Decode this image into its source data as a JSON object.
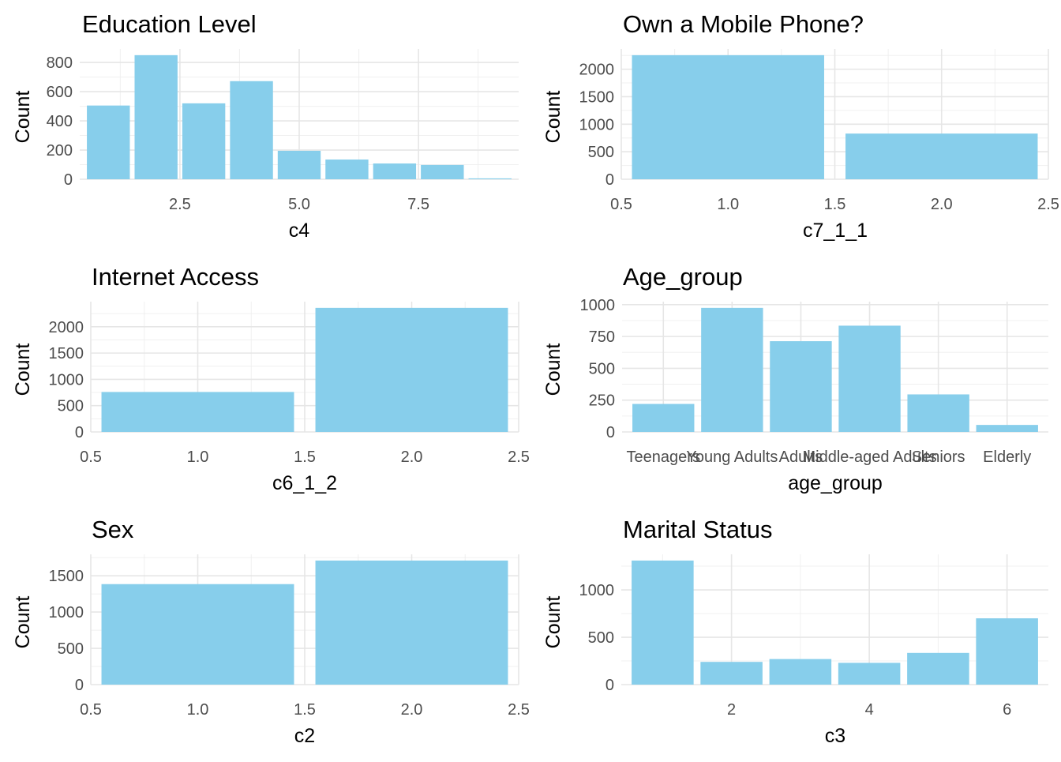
{
  "chart_data": [
    {
      "type": "bar",
      "title": "Education Level",
      "xlabel": "c4",
      "ylabel": "Count",
      "x_scale": "continuous",
      "bar_width": 0.9,
      "x": [
        1,
        2,
        3,
        4,
        5,
        6,
        7,
        8,
        9
      ],
      "values": [
        505,
        850,
        520,
        672,
        195,
        135,
        108,
        98,
        6
      ],
      "xlim": [
        0.4,
        9.6
      ],
      "ylim": [
        0,
        850
      ],
      "xticks": [
        2.5,
        5.0,
        7.5
      ],
      "xtick_labels": [
        "2.5",
        "5.0",
        "7.5"
      ],
      "yticks": [
        0,
        200,
        400,
        600,
        800
      ],
      "color": "#87CEEB",
      "grid": true
    },
    {
      "type": "bar",
      "title": "Own a Mobile Phone?",
      "xlabel": "c7_1_1",
      "ylabel": "Count",
      "x_scale": "continuous",
      "bar_width": 0.9,
      "x": [
        1,
        2
      ],
      "values": [
        2255,
        830
      ],
      "xlim": [
        0.5,
        2.5
      ],
      "ylim": [
        0,
        2255
      ],
      "xticks": [
        0.5,
        1.0,
        1.5,
        2.0,
        2.5
      ],
      "xtick_labels": [
        "0.5",
        "1.0",
        "1.5",
        "2.0",
        "2.5"
      ],
      "yticks": [
        0,
        500,
        1000,
        1500,
        2000
      ],
      "color": "#87CEEB",
      "grid": true
    },
    {
      "type": "bar",
      "title": "Internet Access",
      "xlabel": "c6_1_2",
      "ylabel": "Count",
      "x_scale": "continuous",
      "bar_width": 0.9,
      "x": [
        1,
        2
      ],
      "values": [
        760,
        2360
      ],
      "xlim": [
        0.5,
        2.5
      ],
      "ylim": [
        0,
        2360
      ],
      "xticks": [
        0.5,
        1.0,
        1.5,
        2.0,
        2.5
      ],
      "xtick_labels": [
        "0.5",
        "1.0",
        "1.5",
        "2.0",
        "2.5"
      ],
      "yticks": [
        0,
        500,
        1000,
        1500,
        2000
      ],
      "color": "#87CEEB",
      "grid": true
    },
    {
      "type": "bar",
      "title": "Age_group",
      "xlabel": "age_group",
      "ylabel": "Count",
      "x_scale": "discrete",
      "bar_width": 0.9,
      "categories": [
        "Teenagers",
        "Young Adults",
        "Adults",
        "Middle-aged Adults",
        "Seniors",
        "Elderly"
      ],
      "x": [
        1,
        2,
        3,
        4,
        5,
        6
      ],
      "values": [
        220,
        975,
        713,
        835,
        295,
        55
      ],
      "xlim": [
        0.4,
        6.6
      ],
      "ylim": [
        0,
        975
      ],
      "xticks": [
        1,
        2,
        3,
        4,
        5,
        6
      ],
      "xtick_labels": [
        "Teenagers",
        "Young Adults",
        "Adults",
        "Middle-aged Adults",
        "Seniors",
        "Elderly"
      ],
      "yticks": [
        0,
        250,
        500,
        750,
        1000
      ],
      "color": "#87CEEB",
      "grid": true
    },
    {
      "type": "bar",
      "title": "Sex",
      "xlabel": "c2",
      "ylabel": "Count",
      "x_scale": "continuous",
      "bar_width": 0.9,
      "x": [
        1,
        2
      ],
      "values": [
        1385,
        1710
      ],
      "xlim": [
        0.5,
        2.5
      ],
      "ylim": [
        0,
        1710
      ],
      "xticks": [
        0.5,
        1.0,
        1.5,
        2.0,
        2.5
      ],
      "xtick_labels": [
        "0.5",
        "1.0",
        "1.5",
        "2.0",
        "2.5"
      ],
      "yticks": [
        0,
        500,
        1000,
        1500
      ],
      "color": "#87CEEB",
      "grid": true
    },
    {
      "type": "bar",
      "title": "Marital Status",
      "xlabel": "c3",
      "ylabel": "Count",
      "x_scale": "continuous",
      "bar_width": 0.9,
      "x": [
        1,
        2,
        3,
        4,
        5,
        6
      ],
      "values": [
        1310,
        240,
        270,
        230,
        335,
        700
      ],
      "xlim": [
        0.4,
        6.6
      ],
      "ylim": [
        0,
        1310
      ],
      "xticks": [
        2,
        4,
        6
      ],
      "xtick_labels": [
        "2",
        "4",
        "6"
      ],
      "yticks": [
        0,
        500,
        1000
      ],
      "color": "#87CEEB",
      "grid": true
    }
  ]
}
